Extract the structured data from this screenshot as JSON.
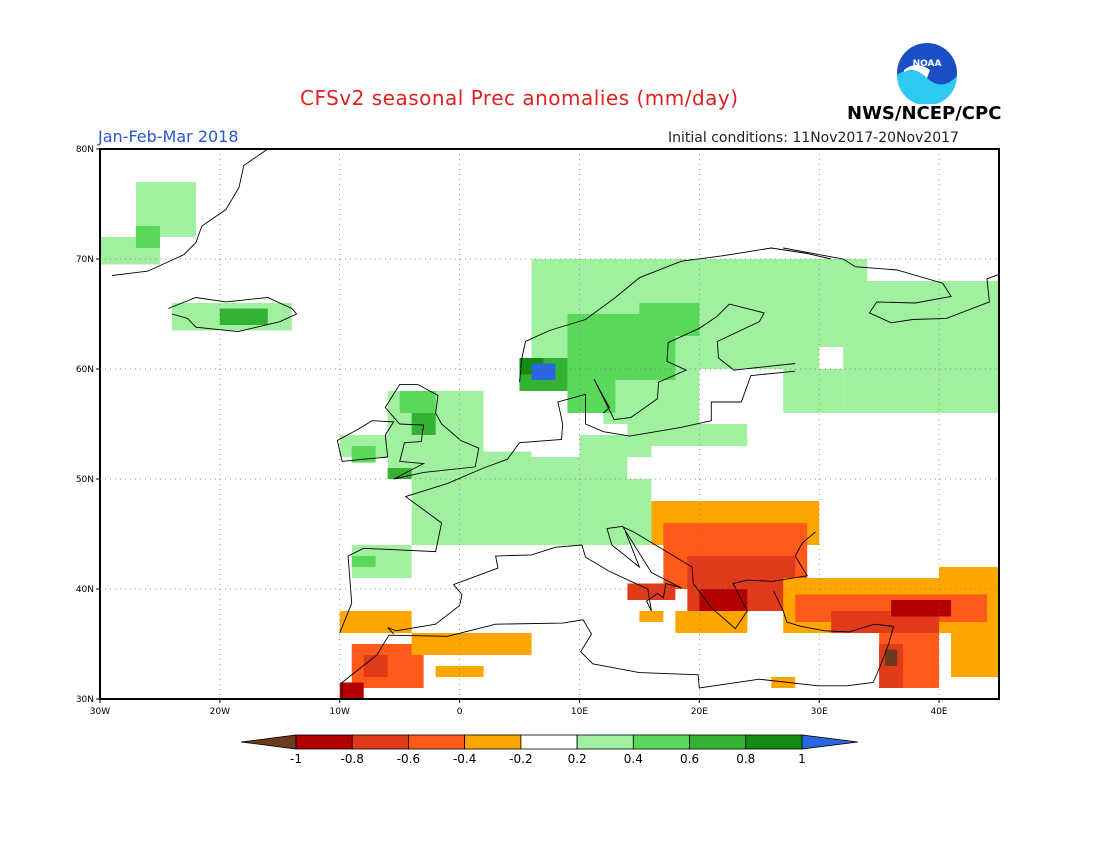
{
  "header": {
    "title": "CFSv2 seasonal Prec anomalies (mm/day)",
    "period": "Jan-Feb-Mar 2018",
    "initial_conditions": "Initial conditions: 11Nov2017-20Nov2017",
    "agency": "NWS/NCEP/CPC",
    "logo_text": "NOAA"
  },
  "map": {
    "lon_range": [
      -30,
      45
    ],
    "lat_range": [
      30,
      80
    ],
    "lat_ticks": [
      "30N",
      "40N",
      "50N",
      "60N",
      "70N",
      "80N"
    ],
    "lon_ticks": [
      "30W",
      "20W",
      "10W",
      "0",
      "10E",
      "20E",
      "30E",
      "40E"
    ],
    "grid": "dotted",
    "region": "Europe, North Africa and Middle East"
  },
  "legend": {
    "labels": [
      "-1",
      "-0.8",
      "-0.6",
      "-0.4",
      "-0.2",
      "0.2",
      "0.4",
      "0.6",
      "0.8",
      "1"
    ],
    "colors": [
      "#6b3a1a",
      "#b40000",
      "#e03a1a",
      "#ff5a1a",
      "#ffa500",
      "#ffffff",
      "#a0f0a0",
      "#5ad85a",
      "#32b432",
      "#148c14",
      "#2a66e0"
    ]
  },
  "anomaly_regions": [
    {
      "name": "Greenland east coast",
      "category": "0.2-0.4",
      "bounds": {
        "lon": [
          -30,
          -21
        ],
        "lat": [
          69,
          77
        ]
      }
    },
    {
      "name": "Iceland",
      "category": "0.4-0.6",
      "bounds": {
        "lon": [
          -24,
          -14
        ],
        "lat": [
          63,
          66
        ]
      }
    },
    {
      "name": "British Isles",
      "category": "0.2-0.6",
      "bounds": {
        "lon": [
          -10,
          2
        ],
        "lat": [
          50,
          59
        ]
      }
    },
    {
      "name": "Western and central Europe",
      "category": "0.2-0.4",
      "bounds": {
        "lon": [
          -5,
          16
        ],
        "lat": [
          44,
          53
        ]
      }
    },
    {
      "name": "Scandinavia",
      "category": "0.2-0.6",
      "bounds": {
        "lon": [
          5,
          30
        ],
        "lat": [
          55,
          70
        ]
      }
    },
    {
      "name": "Norway west coast",
      "category": "0.8-1",
      "bounds": {
        "lon": [
          5,
          8
        ],
        "lat": [
          59,
          61
        ]
      }
    },
    {
      "name": "North-west Russia",
      "category": "0.2-0.4",
      "bounds": {
        "lon": [
          30,
          45
        ],
        "lat": [
          55,
          68
        ]
      }
    },
    {
      "name": "Northern Spain",
      "category": "0.2-0.4",
      "bounds": {
        "lon": [
          -9,
          -4
        ],
        "lat": [
          41,
          44
        ]
      }
    },
    {
      "name": "Balkans and Greece",
      "category": "-0.8 to -0.4",
      "bounds": {
        "lon": [
          17,
          30
        ],
        "lat": [
          36,
          48
        ]
      }
    },
    {
      "name": "Southern Italy",
      "category": "-0.6 to -0.4",
      "bounds": {
        "lon": [
          14,
          18
        ],
        "lat": [
          38,
          41
        ]
      }
    },
    {
      "name": "Turkey and Levant",
      "category": "-1 to -0.4",
      "bounds": {
        "lon": [
          27,
          45
        ],
        "lat": [
          30,
          43
        ]
      }
    },
    {
      "name": "Morocco and Algeria",
      "category": "-0.6 to -0.4",
      "bounds": {
        "lon": [
          -10,
          5
        ],
        "lat": [
          30,
          38
        ]
      }
    }
  ]
}
